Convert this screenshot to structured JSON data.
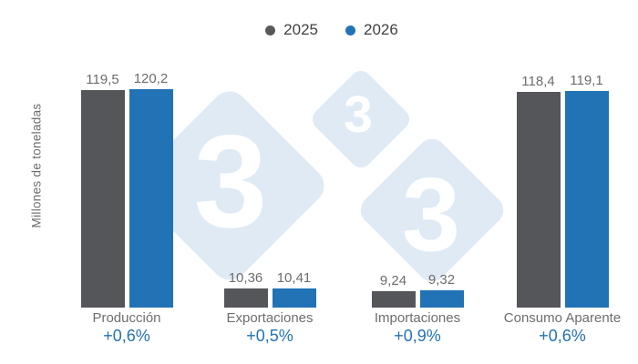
{
  "legend": {
    "items": [
      {
        "label": "2025",
        "color": "#58595b"
      },
      {
        "label": "2026",
        "color": "#2173b6"
      }
    ]
  },
  "ylabel": "Millones de toneladas",
  "chart_data": {
    "type": "bar",
    "title": "",
    "ylabel": "Millones de toneladas",
    "categories": [
      "Producción",
      "Exportaciones",
      "Importaciones",
      "Consumo Aparente"
    ],
    "series": [
      {
        "name": "2025",
        "color": "#54565a",
        "values": [
          119.5,
          10.36,
          9.24,
          118.4
        ],
        "value_labels": [
          "119,5",
          "10,36",
          "9,24",
          "118,4"
        ]
      },
      {
        "name": "2026",
        "color": "#2272b6",
        "values": [
          120.2,
          10.41,
          9.32,
          119.1
        ],
        "value_labels": [
          "120,2",
          "10,41",
          "9,32",
          "119,1"
        ]
      }
    ],
    "change_labels": [
      "+0,6%",
      "+0,5%",
      "+0,9%",
      "+0,6%"
    ],
    "ylim": [
      0,
      130
    ],
    "grid": false,
    "legend_position": "top",
    "value_label_color": "#6b6d6f",
    "category_label_color": "#6d6e70",
    "change_label_color": "#2173b6"
  },
  "watermark": {
    "glyph": "3",
    "diamond_color": "#dfeaf5",
    "glyph_color": "#ffffff"
  }
}
